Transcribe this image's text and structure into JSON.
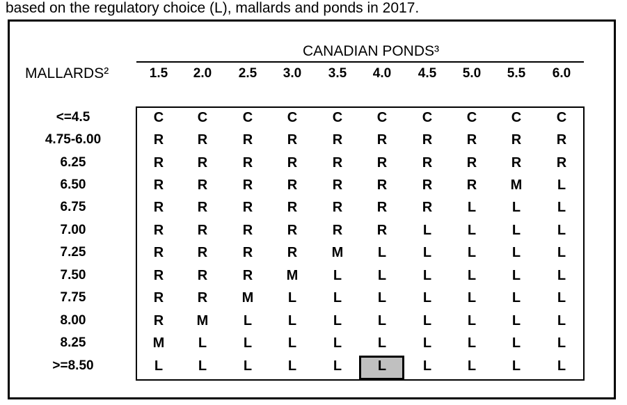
{
  "caption": "based on the regulatory choice (L), mallards and ponds in 2017.",
  "column_title": "CANADIAN PONDS³",
  "row_title": "MALLARDS²",
  "ponds": [
    "1.5",
    "2.0",
    "2.5",
    "3.0",
    "3.5",
    "4.0",
    "4.5",
    "5.0",
    "5.5",
    "6.0"
  ],
  "mallards": [
    "<=4.5",
    "4.75-6.00",
    "6.25",
    "6.50",
    "6.75",
    "7.00",
    "7.25",
    "7.50",
    "7.75",
    "8.00",
    "8.25",
    ">=8.50"
  ],
  "grid": [
    [
      "C",
      "C",
      "C",
      "C",
      "C",
      "C",
      "C",
      "C",
      "C",
      "C"
    ],
    [
      "R",
      "R",
      "R",
      "R",
      "R",
      "R",
      "R",
      "R",
      "R",
      "R"
    ],
    [
      "R",
      "R",
      "R",
      "R",
      "R",
      "R",
      "R",
      "R",
      "R",
      "R"
    ],
    [
      "R",
      "R",
      "R",
      "R",
      "R",
      "R",
      "R",
      "R",
      "M",
      "L"
    ],
    [
      "R",
      "R",
      "R",
      "R",
      "R",
      "R",
      "R",
      "L",
      "L",
      "L"
    ],
    [
      "R",
      "R",
      "R",
      "R",
      "R",
      "R",
      "L",
      "L",
      "L",
      "L"
    ],
    [
      "R",
      "R",
      "R",
      "R",
      "M",
      "L",
      "L",
      "L",
      "L",
      "L"
    ],
    [
      "R",
      "R",
      "R",
      "M",
      "L",
      "L",
      "L",
      "L",
      "L",
      "L"
    ],
    [
      "R",
      "R",
      "M",
      "L",
      "L",
      "L",
      "L",
      "L",
      "L",
      "L"
    ],
    [
      "R",
      "M",
      "L",
      "L",
      "L",
      "L",
      "L",
      "L",
      "L",
      "L"
    ],
    [
      "M",
      "L",
      "L",
      "L",
      "L",
      "L",
      "L",
      "L",
      "L",
      "L"
    ],
    [
      "L",
      "L",
      "L",
      "L",
      "L",
      "L",
      "L",
      "L",
      "L",
      "L"
    ]
  ],
  "highlight": {
    "row": 11,
    "col": 5
  },
  "colors": {
    "highlight_fill": "#c0c0c0",
    "text": "#000000",
    "background": "#ffffff"
  }
}
